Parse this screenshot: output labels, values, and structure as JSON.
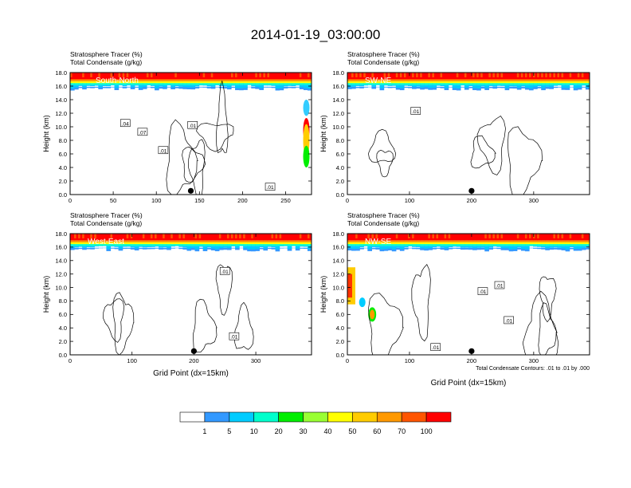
{
  "title": "2014-01-19_03:00:00",
  "chart_data": [
    {
      "type": "heatmap",
      "panel_label": "South-North",
      "title_lines": [
        "Stratosphere Tracer   (%)",
        "Total Condensate   (g/kg)"
      ],
      "ylabel": "Height (km)",
      "xlabel": "",
      "xlim": [
        0,
        280
      ],
      "ylim": [
        0,
        18
      ],
      "xticks": [
        0,
        50,
        100,
        150,
        200,
        250
      ],
      "yticks": [
        "0.0",
        "2.0",
        "4.0",
        "6.0",
        "8.0",
        "10.0",
        "12.0",
        "14.0",
        "16.0",
        "18.0"
      ],
      "tropopause_km": 16.0,
      "marker_x": 140,
      "contour_labels": [
        {
          "text": ".04",
          "x": 64,
          "y": 10.5
        },
        {
          "text": ".07",
          "x": 84,
          "y": 9.2
        },
        {
          "text": ".01",
          "x": 108,
          "y": 6.5
        },
        {
          "text": ".01",
          "x": 142,
          "y": 10.2
        },
        {
          "text": ".01",
          "x": 232,
          "y": 1.1
        }
      ]
    },
    {
      "type": "heatmap",
      "panel_label": "SW-NE",
      "title_lines": [
        "Stratosphere Tracer   (%)",
        "Total Condensate   (g/kg)"
      ],
      "ylabel": "Height (km)",
      "xlabel": "",
      "xlim": [
        0,
        390
      ],
      "ylim": [
        0,
        18
      ],
      "xticks": [
        0,
        100,
        200,
        300
      ],
      "yticks": [
        "0.0",
        "2.0",
        "4.0",
        "6.0",
        "8.0",
        "10.0",
        "12.0",
        "14.0",
        "16.0",
        "18.0"
      ],
      "tropopause_km": 16.0,
      "marker_x": 200,
      "contour_labels": [
        {
          "text": ".01",
          "x": 110,
          "y": 12.3
        }
      ]
    },
    {
      "type": "heatmap",
      "panel_label": "West-East",
      "title_lines": [
        "Stratosphere Tracer   (%)",
        "Total Condensate   (g/kg)"
      ],
      "ylabel": "Height (km)",
      "xlabel": "Grid Point (dx=15km)",
      "xlim": [
        0,
        390
      ],
      "ylim": [
        0,
        18
      ],
      "xticks": [
        0,
        100,
        200,
        300
      ],
      "yticks": [
        "0.0",
        "2.0",
        "4.0",
        "6.0",
        "8.0",
        "10.0",
        "12.0",
        "14.0",
        "16.0",
        "18.0"
      ],
      "tropopause_km": 16.0,
      "marker_x": 200,
      "contour_labels": [
        {
          "text": ".01",
          "x": 250,
          "y": 12.4
        },
        {
          "text": ".01",
          "x": 265,
          "y": 2.7
        }
      ]
    },
    {
      "type": "heatmap",
      "panel_label": "NW-SE",
      "title_lines": [
        "Stratosphere Tracer   (%)",
        "Total Condensate   (g/kg)"
      ],
      "ylabel": "Height (km)",
      "xlabel": "Grid Point (dx=15km)",
      "xlim": [
        0,
        390
      ],
      "ylim": [
        0,
        18
      ],
      "xticks": [
        0,
        100,
        200,
        300
      ],
      "yticks": [
        "0.0",
        "2.0",
        "4.0",
        "6.0",
        "8.0",
        "10.0",
        "12.0",
        "14.0",
        "16.0",
        "18.0"
      ],
      "tropopause_km": 16.0,
      "marker_x": 200,
      "contour_labels": [
        {
          "text": ".01",
          "x": 218,
          "y": 9.4
        },
        {
          "text": ".01",
          "x": 245,
          "y": 10.3
        },
        {
          "text": ".01",
          "x": 260,
          "y": 5.1
        },
        {
          "text": ".01",
          "x": 142,
          "y": 1.1
        }
      ],
      "footnote": "Total Condensate Contours: .01 to .01 by .000"
    }
  ],
  "colorbar": {
    "labels": [
      "1",
      "5",
      "10",
      "20",
      "30",
      "40",
      "50",
      "60",
      "70",
      "100"
    ],
    "colors": [
      "#ffffff",
      "#3399ff",
      "#00ccff",
      "#00ffcc",
      "#00ee00",
      "#99ff33",
      "#ffff00",
      "#ffcc00",
      "#ff9900",
      "#ff5500",
      "#ff0000"
    ]
  }
}
